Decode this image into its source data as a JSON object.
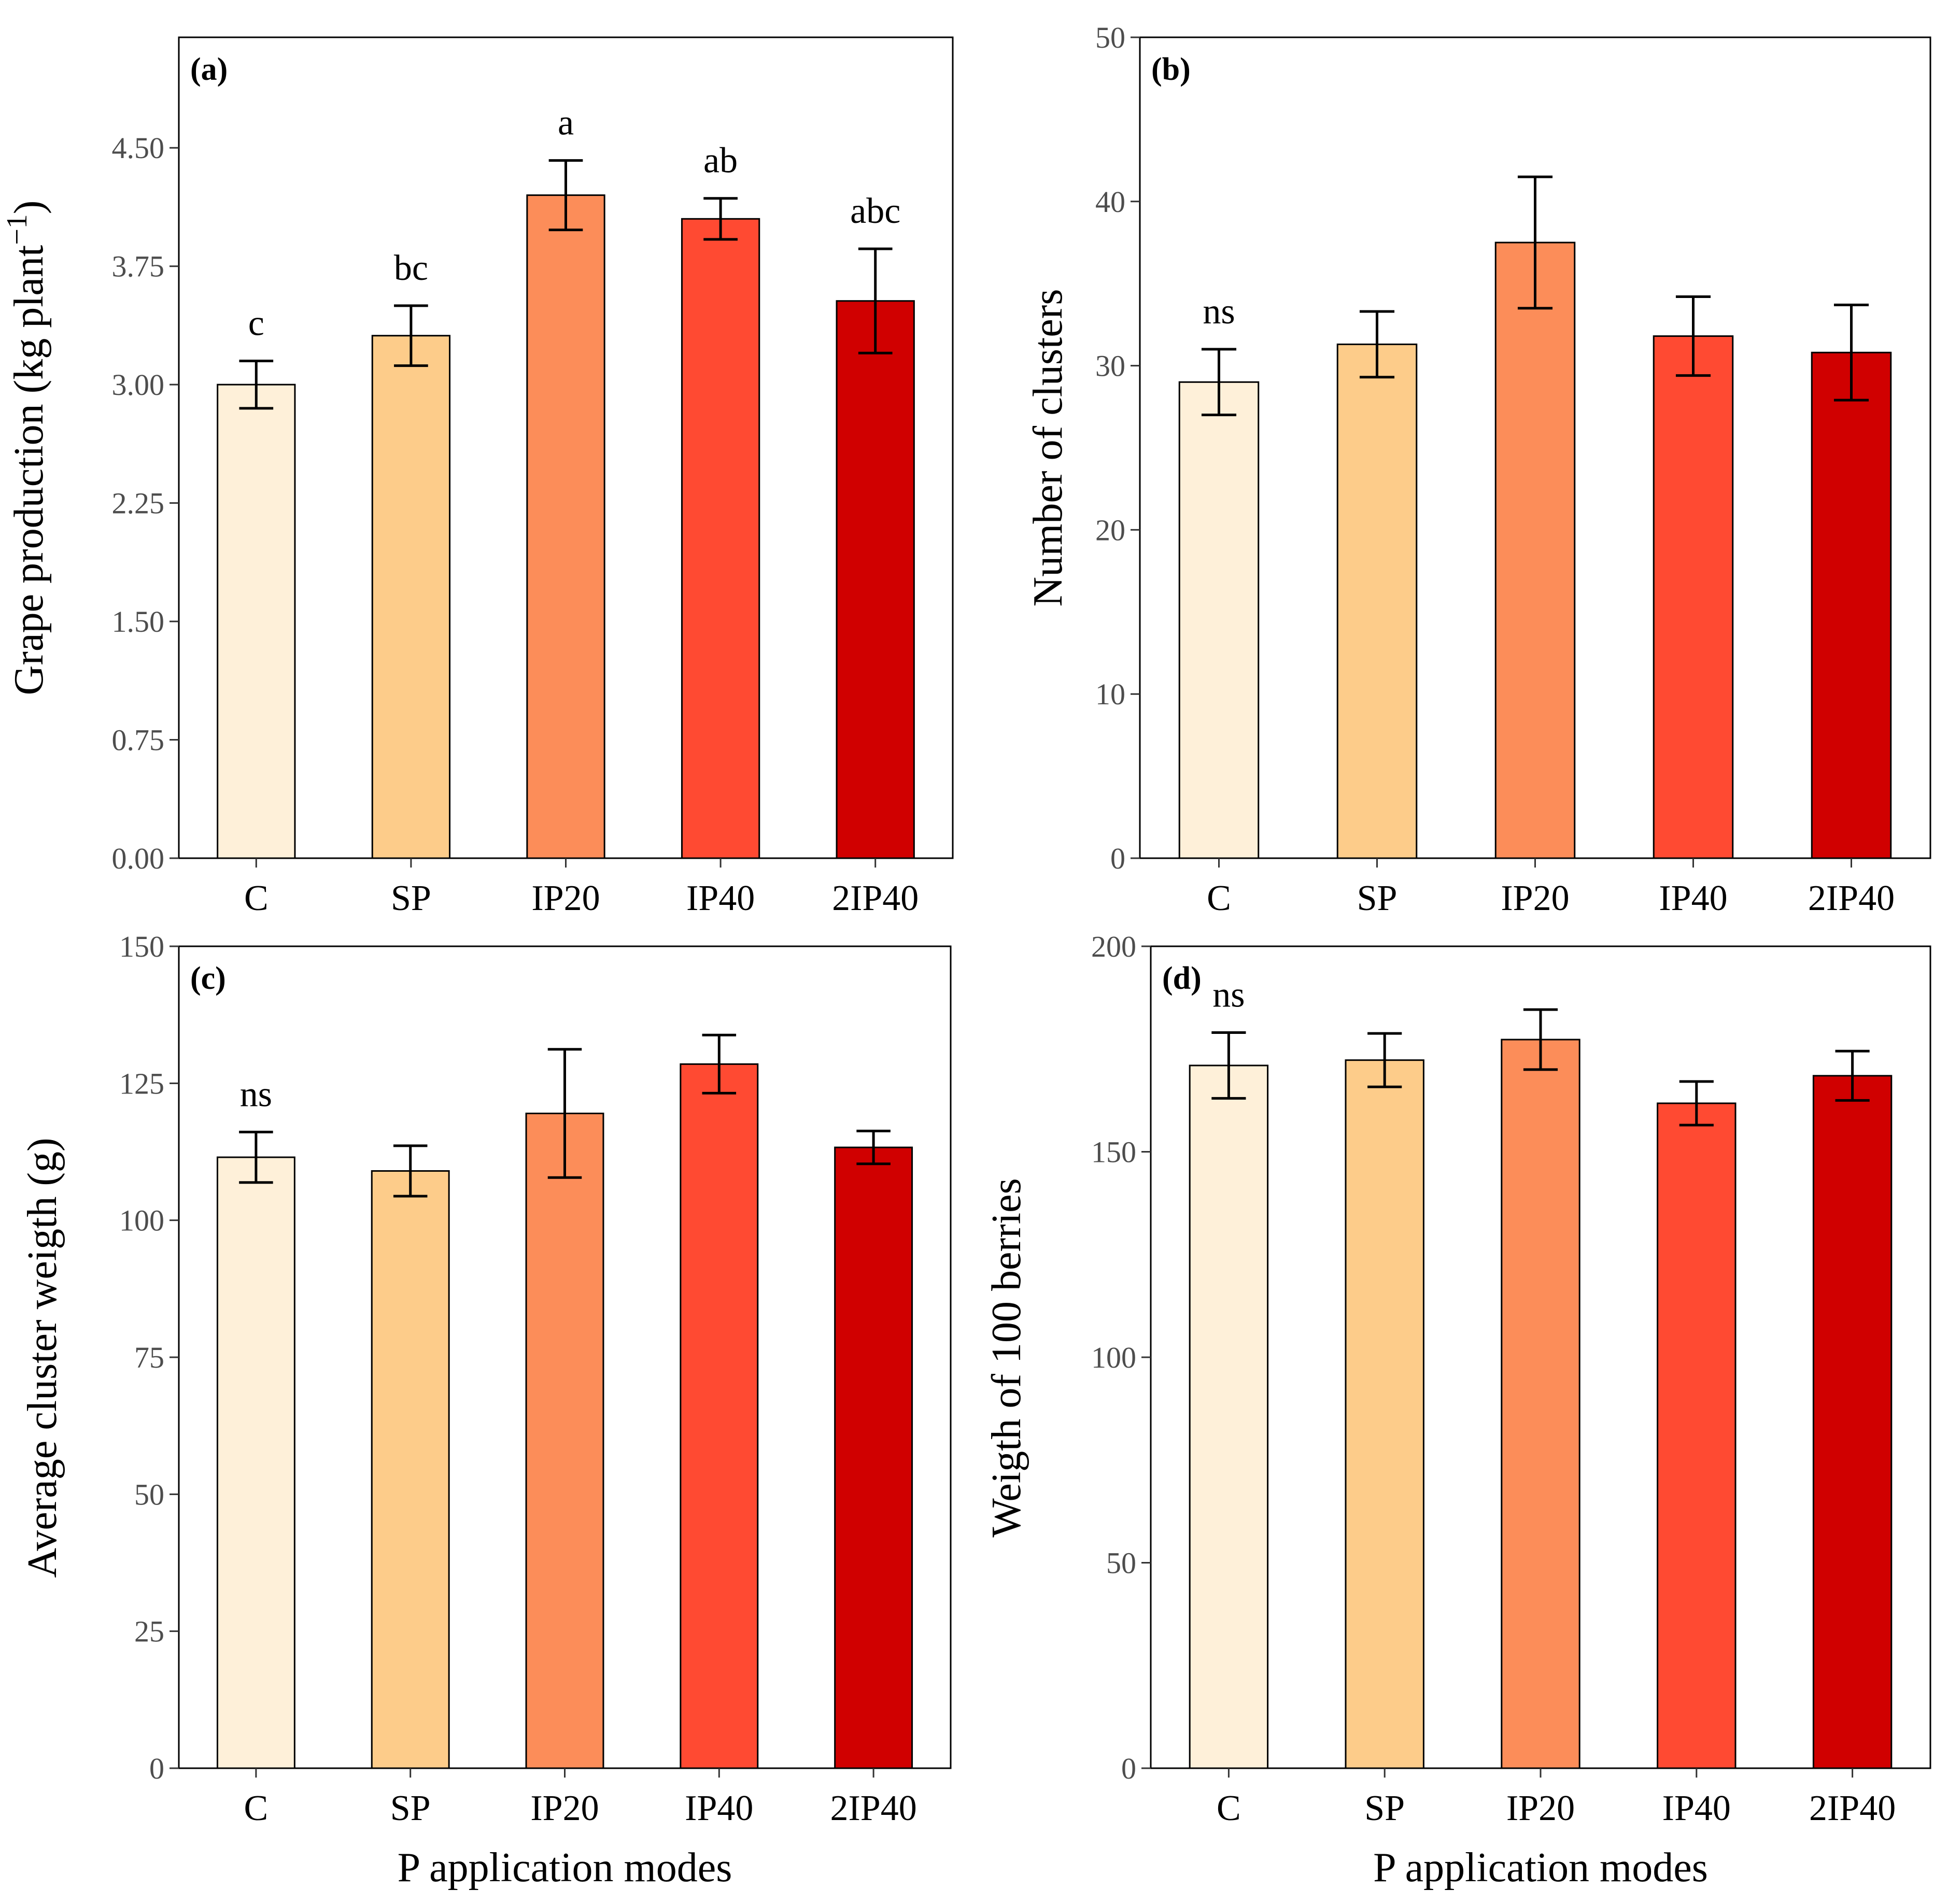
{
  "chart_data": [
    {
      "type": "bar",
      "panel": "(a)",
      "categories": [
        "C",
        "SP",
        "IP20",
        "IP40",
        "2IP40"
      ],
      "values": [
        3.0,
        3.31,
        4.2,
        4.05,
        3.53
      ],
      "errors": [
        0.15,
        0.19,
        0.22,
        0.13,
        0.33
      ],
      "letters": [
        "c",
        "bc",
        "a",
        "ab",
        "abc"
      ],
      "colors": [
        "#FEF0D9",
        "#FDCC8A",
        "#FC8D59",
        "#FF4A32",
        "#D00000"
      ],
      "ylabel_main": "Grape production (kg plant",
      "ylabel_sup": "−1",
      "ylabel_close": ")",
      "xlabel": "",
      "ylim": [
        0,
        5.2
      ],
      "yticks": [
        0,
        0.75,
        1.5,
        2.25,
        3,
        3.75,
        4.5
      ],
      "ytick_labels": [
        "0.00",
        "0.75",
        "1.50",
        "2.25",
        "3.00",
        "3.75",
        "4.50"
      ]
    },
    {
      "type": "bar",
      "panel": "(b)",
      "categories": [
        "C",
        "SP",
        "IP20",
        "IP40",
        "2IP40"
      ],
      "values": [
        29.0,
        31.3,
        37.5,
        31.8,
        30.8
      ],
      "errors": [
        2.0,
        2.0,
        4.0,
        2.4,
        2.9
      ],
      "letters": [
        "ns",
        "",
        "",
        "",
        ""
      ],
      "colors": [
        "#FEF0D9",
        "#FDCC8A",
        "#FC8D59",
        "#FF4A32",
        "#D00000"
      ],
      "ylabel": "Number of clusters",
      "xlabel": "",
      "ylim": [
        0,
        50
      ],
      "yticks": [
        0,
        10,
        20,
        30,
        40,
        50
      ],
      "ytick_labels": [
        "0",
        "10",
        "20",
        "30",
        "40",
        "50"
      ]
    },
    {
      "type": "bar",
      "panel": "(c)",
      "categories": [
        "C",
        "SP",
        "IP20",
        "IP40",
        "2IP40"
      ],
      "values": [
        111.5,
        109.0,
        119.5,
        128.5,
        113.3
      ],
      "errors": [
        4.6,
        4.6,
        11.7,
        5.3,
        3.0
      ],
      "letters": [
        "ns",
        "",
        "",
        "",
        ""
      ],
      "colors": [
        "#FEF0D9",
        "#FDCC8A",
        "#FC8D59",
        "#FF4A32",
        "#D00000"
      ],
      "ylabel": "Average cluster weigth (g)",
      "xlabel": "P application modes",
      "ylim": [
        0,
        150
      ],
      "yticks": [
        0,
        25,
        50,
        75,
        100,
        125,
        150
      ],
      "ytick_labels": [
        "0",
        "25",
        "50",
        "75",
        "100",
        "125",
        "150"
      ]
    },
    {
      "type": "bar",
      "panel": "(d)",
      "categories": [
        "C",
        "SP",
        "IP20",
        "IP40",
        "2IP40"
      ],
      "values": [
        171.0,
        172.3,
        177.3,
        161.8,
        168.5
      ],
      "errors": [
        8.0,
        6.5,
        7.3,
        5.3,
        6.0
      ],
      "letters": [
        "ns",
        "",
        "",
        "",
        ""
      ],
      "colors": [
        "#FEF0D9",
        "#FDCC8A",
        "#FC8D59",
        "#FF4A32",
        "#D00000"
      ],
      "ylabel": "Weigth of 100 berries",
      "xlabel": "P application modes",
      "ylim": [
        0,
        200
      ],
      "yticks": [
        0,
        50,
        100,
        150,
        200
      ],
      "ytick_labels": [
        "0",
        "50",
        "100",
        "150",
        "200"
      ]
    }
  ]
}
